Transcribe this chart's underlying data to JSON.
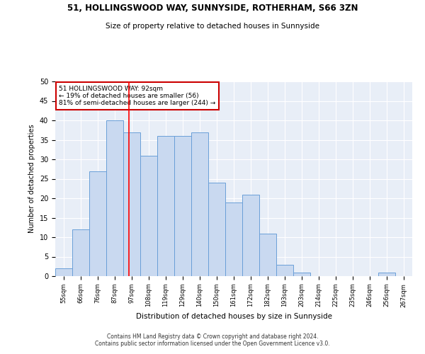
{
  "title1": "51, HOLLINGSWOOD WAY, SUNNYSIDE, ROTHERHAM, S66 3ZN",
  "title2": "Size of property relative to detached houses in Sunnyside",
  "xlabel": "Distribution of detached houses by size in Sunnyside",
  "ylabel": "Number of detached properties",
  "bin_labels": [
    "55sqm",
    "66sqm",
    "76sqm",
    "87sqm",
    "97sqm",
    "108sqm",
    "119sqm",
    "129sqm",
    "140sqm",
    "150sqm",
    "161sqm",
    "172sqm",
    "182sqm",
    "193sqm",
    "203sqm",
    "214sqm",
    "225sqm",
    "235sqm",
    "246sqm",
    "256sqm",
    "267sqm"
  ],
  "values": [
    2,
    12,
    27,
    40,
    37,
    31,
    36,
    36,
    37,
    24,
    19,
    21,
    11,
    3,
    1,
    0,
    0,
    0,
    0,
    1,
    0
  ],
  "bar_color": "#c9d9f0",
  "bar_edge_color": "#6a9fd8",
  "red_line_x": 3.82,
  "annotation_line1": "51 HOLLINGSWOOD WAY: 92sqm",
  "annotation_line2": "← 19% of detached houses are smaller (56)",
  "annotation_line3": "81% of semi-detached houses are larger (244) →",
  "annotation_box_color": "#ffffff",
  "annotation_box_edge": "#cc0000",
  "ylim": [
    0,
    50
  ],
  "yticks": [
    0,
    5,
    10,
    15,
    20,
    25,
    30,
    35,
    40,
    45,
    50
  ],
  "bg_color": "#e8eef7",
  "footer1": "Contains HM Land Registry data © Crown copyright and database right 2024.",
  "footer2": "Contains public sector information licensed under the Open Government Licence v3.0."
}
